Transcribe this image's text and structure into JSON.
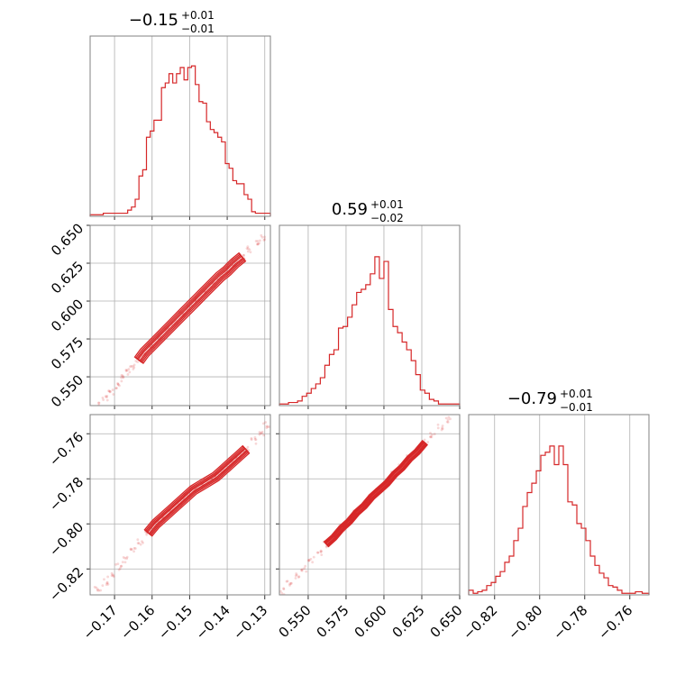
{
  "chart_data": {
    "type": "corner",
    "color": "#d62728",
    "parameters": [
      {
        "title_main": "−0.15",
        "title_plus": "+0.01",
        "title_minus": "−0.01",
        "range": [
          -0.1765,
          -0.1285
        ],
        "ticks": [
          {
            "v": -0.17,
            "label": "−0.17"
          },
          {
            "v": -0.16,
            "label": "−0.16"
          },
          {
            "v": -0.15,
            "label": "−0.15"
          },
          {
            "v": -0.14,
            "label": "−0.14"
          },
          {
            "v": -0.13,
            "label": "−0.13"
          }
        ],
        "hist_edges": [
          -0.1765,
          -0.173,
          -0.1665,
          -0.1655,
          -0.1645,
          -0.1635,
          -0.1625,
          -0.1615,
          -0.1605,
          -0.1595,
          -0.1585,
          -0.1575,
          -0.1565,
          -0.1555,
          -0.1545,
          -0.1535,
          -0.1525,
          -0.1515,
          -0.1505,
          -0.1495,
          -0.1485,
          -0.1475,
          -0.1465,
          -0.1455,
          -0.1445,
          -0.1435,
          -0.1425,
          -0.1415,
          -0.1405,
          -0.1395,
          -0.1385,
          -0.1375,
          -0.1355,
          -0.1345,
          -0.1335,
          -0.1325,
          -0.1305,
          -0.1285
        ],
        "hist_counts": [
          0.01,
          0.02,
          0.04,
          0.06,
          0.11,
          0.26,
          0.3,
          0.51,
          0.55,
          0.62,
          0.62,
          0.83,
          0.86,
          0.92,
          0.86,
          0.92,
          0.96,
          0.88,
          0.96,
          0.97,
          0.85,
          0.74,
          0.73,
          0.61,
          0.56,
          0.54,
          0.51,
          0.48,
          0.34,
          0.31,
          0.23,
          0.21,
          0.14,
          0.11,
          0.03,
          0.02,
          0.02
        ]
      },
      {
        "title_main": "0.59",
        "title_plus": "+0.01",
        "title_minus": "−0.02",
        "range": [
          0.531,
          0.65
        ],
        "ticks": [
          {
            "v": 0.55,
            "label": "0.550"
          },
          {
            "v": 0.575,
            "label": "0.575"
          },
          {
            "v": 0.6,
            "label": "0.600"
          },
          {
            "v": 0.625,
            "label": "0.625"
          },
          {
            "v": 0.65,
            "label": "0.650"
          }
        ],
        "hist_edges": [
          0.531,
          0.534,
          0.537,
          0.54,
          0.543,
          0.546,
          0.549,
          0.552,
          0.555,
          0.558,
          0.561,
          0.564,
          0.567,
          0.57,
          0.573,
          0.576,
          0.579,
          0.582,
          0.585,
          0.588,
          0.591,
          0.594,
          0.597,
          0.6,
          0.603,
          0.606,
          0.609,
          0.612,
          0.615,
          0.618,
          0.621,
          0.624,
          0.627,
          0.63,
          0.633,
          0.636,
          0.639,
          0.65
        ],
        "hist_counts": [
          0.01,
          0.01,
          0.02,
          0.02,
          0.03,
          0.06,
          0.08,
          0.11,
          0.14,
          0.18,
          0.26,
          0.33,
          0.36,
          0.5,
          0.51,
          0.57,
          0.65,
          0.73,
          0.75,
          0.78,
          0.85,
          0.96,
          0.82,
          0.93,
          0.62,
          0.51,
          0.47,
          0.41,
          0.36,
          0.29,
          0.2,
          0.1,
          0.08,
          0.04,
          0.03,
          0.01,
          0.01
        ]
      },
      {
        "title_main": "−0.79",
        "title_plus": "+0.01",
        "title_minus": "−0.01",
        "range": [
          -0.8315,
          -0.7515
        ],
        "ticks": [
          {
            "v": -0.82,
            "label": "−0.82"
          },
          {
            "v": -0.8,
            "label": "−0.80"
          },
          {
            "v": -0.78,
            "label": "−0.78"
          },
          {
            "v": -0.76,
            "label": "−0.76"
          }
        ],
        "hist_edges": [
          -0.8315,
          -0.8295,
          -0.8275,
          -0.8255,
          -0.8235,
          -0.8215,
          -0.8195,
          -0.8175,
          -0.8155,
          -0.8135,
          -0.8115,
          -0.8095,
          -0.8075,
          -0.8055,
          -0.8035,
          -0.8015,
          -0.7995,
          -0.7975,
          -0.7955,
          -0.7935,
          -0.7915,
          -0.7895,
          -0.7875,
          -0.7855,
          -0.7835,
          -0.7815,
          -0.7795,
          -0.7775,
          -0.7755,
          -0.7735,
          -0.7715,
          -0.7695,
          -0.7675,
          -0.7655,
          -0.7635,
          -0.7605,
          -0.7575,
          -0.7545,
          -0.7515
        ],
        "hist_counts": [
          0.03,
          0.01,
          0.02,
          0.03,
          0.06,
          0.08,
          0.12,
          0.15,
          0.21,
          0.25,
          0.35,
          0.43,
          0.57,
          0.66,
          0.72,
          0.8,
          0.9,
          0.92,
          0.96,
          0.84,
          0.96,
          0.84,
          0.6,
          0.58,
          0.46,
          0.43,
          0.35,
          0.25,
          0.19,
          0.14,
          0.11,
          0.06,
          0.05,
          0.03,
          0.01,
          0.01,
          0.02,
          0.01
        ]
      }
    ],
    "scatter_seed_points": {
      "p1_p0": [
        [
          -0.1745,
          0.532
        ],
        [
          -0.1725,
          0.536
        ],
        [
          -0.171,
          0.54
        ],
        [
          -0.1695,
          0.544
        ],
        [
          -0.168,
          0.549
        ],
        [
          -0.1665,
          0.553
        ],
        [
          -0.165,
          0.557
        ],
        [
          -0.1635,
          0.561
        ],
        [
          -0.162,
          0.566
        ],
        [
          -0.16,
          0.571
        ],
        [
          -0.158,
          0.576
        ],
        [
          -0.156,
          0.581
        ],
        [
          -0.154,
          0.586
        ],
        [
          -0.152,
          0.591
        ],
        [
          -0.15,
          0.596
        ],
        [
          -0.148,
          0.601
        ],
        [
          -0.146,
          0.606
        ],
        [
          -0.144,
          0.611
        ],
        [
          -0.142,
          0.616
        ],
        [
          -0.14,
          0.62
        ],
        [
          -0.138,
          0.625
        ],
        [
          -0.136,
          0.629
        ],
        [
          -0.134,
          0.634
        ],
        [
          -0.132,
          0.638
        ],
        [
          -0.1305,
          0.642
        ]
      ],
      "p2_p0": [
        [
          -0.1745,
          -0.829
        ],
        [
          -0.1725,
          -0.826
        ],
        [
          -0.171,
          -0.823
        ],
        [
          -0.169,
          -0.819
        ],
        [
          -0.167,
          -0.816
        ],
        [
          -0.165,
          -0.812
        ],
        [
          -0.163,
          -0.808
        ],
        [
          -0.161,
          -0.804
        ],
        [
          -0.159,
          -0.8
        ],
        [
          -0.157,
          -0.797
        ],
        [
          -0.155,
          -0.794
        ],
        [
          -0.153,
          -0.791
        ],
        [
          -0.151,
          -0.788
        ],
        [
          -0.149,
          -0.785
        ],
        [
          -0.147,
          -0.783
        ],
        [
          -0.145,
          -0.781
        ],
        [
          -0.143,
          -0.779
        ],
        [
          -0.141,
          -0.776
        ],
        [
          -0.139,
          -0.773
        ],
        [
          -0.137,
          -0.77
        ],
        [
          -0.135,
          -0.767
        ],
        [
          -0.133,
          -0.763
        ],
        [
          -0.131,
          -0.76
        ],
        [
          -0.1295,
          -0.756
        ]
      ],
      "p2_p1": [
        [
          0.532,
          -0.83
        ],
        [
          0.537,
          -0.826
        ],
        [
          0.542,
          -0.823
        ],
        [
          0.547,
          -0.82
        ],
        [
          0.552,
          -0.816
        ],
        [
          0.557,
          -0.813
        ],
        [
          0.562,
          -0.809
        ],
        [
          0.567,
          -0.806
        ],
        [
          0.572,
          -0.802
        ],
        [
          0.577,
          -0.799
        ],
        [
          0.582,
          -0.795
        ],
        [
          0.587,
          -0.792
        ],
        [
          0.592,
          -0.788
        ],
        [
          0.597,
          -0.785
        ],
        [
          0.602,
          -0.782
        ],
        [
          0.607,
          -0.778
        ],
        [
          0.612,
          -0.775
        ],
        [
          0.617,
          -0.771
        ],
        [
          0.622,
          -0.768
        ],
        [
          0.627,
          -0.764
        ],
        [
          0.632,
          -0.761
        ],
        [
          0.637,
          -0.757
        ],
        [
          0.642,
          -0.754
        ]
      ]
    }
  }
}
